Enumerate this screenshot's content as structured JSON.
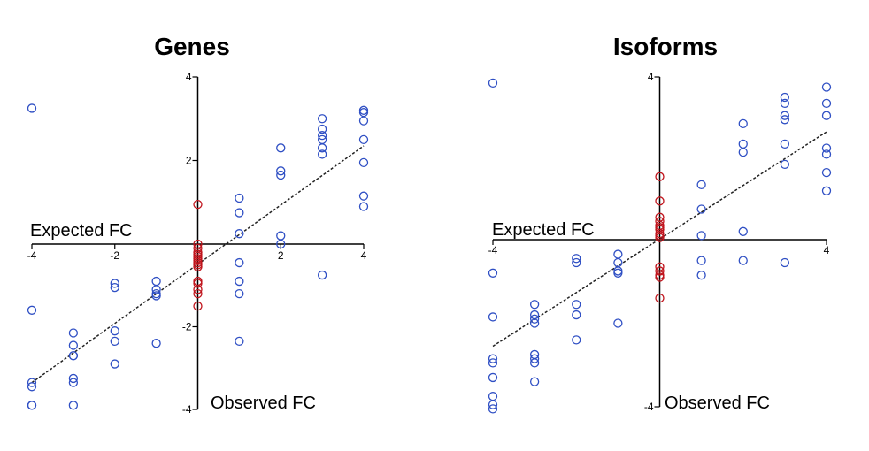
{
  "chart_data": [
    {
      "type": "scatter",
      "title": "Genes",
      "xlabel": "Expected FC",
      "ylabel": "Observed FC",
      "xlim": [
        -4,
        4
      ],
      "ylim": [
        -4,
        4
      ],
      "x_ticks": [
        -4,
        -2,
        2,
        4
      ],
      "y_ticks": [
        4,
        2,
        -2,
        -4
      ],
      "grid": false,
      "colors": {
        "blue": "#2f4fc4",
        "red": "#c0141c",
        "fit": "#222222"
      },
      "fit_line": {
        "x": [
          -4,
          4
        ],
        "y": [
          -3.35,
          2.35
        ]
      },
      "series": [
        {
          "color": "blue",
          "points": [
            [
              -4,
              3.25
            ],
            [
              -4,
              -1.6
            ],
            [
              -4,
              -3.35
            ],
            [
              -4,
              -3.45
            ],
            [
              -4,
              -3.9
            ],
            [
              -4,
              -3.9
            ],
            [
              -3,
              -2.15
            ],
            [
              -3,
              -2.45
            ],
            [
              -3,
              -2.7
            ],
            [
              -3,
              -2.7
            ],
            [
              -3,
              -3.25
            ],
            [
              -3,
              -3.35
            ],
            [
              -3,
              -3.9
            ],
            [
              -2,
              -0.95
            ],
            [
              -2,
              -1.05
            ],
            [
              -2,
              -2.1
            ],
            [
              -2,
              -2.35
            ],
            [
              -2,
              -2.9
            ],
            [
              -1,
              -0.9
            ],
            [
              -1,
              -1.1
            ],
            [
              -1,
              -1.2
            ],
            [
              -1,
              -1.25
            ],
            [
              -1,
              -2.4
            ],
            [
              1,
              1.1
            ],
            [
              1,
              0.75
            ],
            [
              1,
              0.25
            ],
            [
              1,
              -0.45
            ],
            [
              1,
              -0.9
            ],
            [
              1,
              -1.2
            ],
            [
              1,
              -2.35
            ],
            [
              2,
              2.3
            ],
            [
              2,
              1.75
            ],
            [
              2,
              1.65
            ],
            [
              2,
              0.2
            ],
            [
              2,
              0.0
            ],
            [
              3,
              3.0
            ],
            [
              3,
              2.75
            ],
            [
              3,
              2.6
            ],
            [
              3,
              2.5
            ],
            [
              3,
              2.3
            ],
            [
              3,
              2.15
            ],
            [
              3,
              -0.75
            ],
            [
              4,
              3.2
            ],
            [
              4,
              3.15
            ],
            [
              4,
              2.95
            ],
            [
              4,
              2.5
            ],
            [
              4,
              1.95
            ],
            [
              4,
              1.15
            ],
            [
              4,
              0.9
            ]
          ]
        },
        {
          "color": "red",
          "points": [
            [
              0,
              0.95
            ],
            [
              0,
              0.0
            ],
            [
              0,
              -0.1
            ],
            [
              0,
              -0.2
            ],
            [
              0,
              -0.25
            ],
            [
              0,
              -0.3
            ],
            [
              0,
              -0.35
            ],
            [
              0,
              -0.4
            ],
            [
              0,
              -0.45
            ],
            [
              0,
              -0.5
            ],
            [
              0,
              -0.55
            ],
            [
              0,
              -0.9
            ],
            [
              0,
              -0.95
            ],
            [
              0,
              -1.1
            ],
            [
              0,
              -1.2
            ],
            [
              0,
              -1.5
            ]
          ]
        }
      ]
    },
    {
      "type": "scatter",
      "title": "Isoforms",
      "xlabel": "Expected FC",
      "ylabel": "Observed FC",
      "xlim": [
        -4,
        4
      ],
      "ylim": [
        -4,
        4
      ],
      "x_ticks": [
        -4,
        4
      ],
      "y_ticks": [
        4,
        -4
      ],
      "grid": false,
      "colors": {
        "blue": "#2f4fc4",
        "red": "#c0141c",
        "fit": "#222222"
      },
      "fit_line": {
        "x": [
          -4,
          4
        ],
        "y": [
          -2.55,
          2.65
        ]
      },
      "series": [
        {
          "color": "blue",
          "points": [
            [
              -4,
              3.85
            ],
            [
              -4,
              -0.8
            ],
            [
              -4,
              -1.85
            ],
            [
              -4,
              -2.85
            ],
            [
              -4,
              -2.95
            ],
            [
              -4,
              -3.3
            ],
            [
              -4,
              -3.75
            ],
            [
              -4,
              -3.95
            ],
            [
              -4,
              -4.05
            ],
            [
              -3,
              -1.55
            ],
            [
              -3,
              -1.8
            ],
            [
              -3,
              -1.9
            ],
            [
              -3,
              -2.0
            ],
            [
              -3,
              -2.75
            ],
            [
              -3,
              -2.85
            ],
            [
              -3,
              -2.95
            ],
            [
              -3,
              -3.4
            ],
            [
              -2,
              -0.45
            ],
            [
              -2,
              -0.55
            ],
            [
              -2,
              -1.55
            ],
            [
              -2,
              -1.8
            ],
            [
              -2,
              -2.4
            ],
            [
              -1,
              -0.35
            ],
            [
              -1,
              -0.55
            ],
            [
              -1,
              -0.75
            ],
            [
              -1,
              -0.8
            ],
            [
              -1,
              -2.0
            ],
            [
              1,
              1.35
            ],
            [
              1,
              0.75
            ],
            [
              1,
              0.1
            ],
            [
              1,
              -0.5
            ],
            [
              1,
              -0.85
            ],
            [
              2,
              2.85
            ],
            [
              2,
              2.35
            ],
            [
              2,
              2.15
            ],
            [
              2,
              0.2
            ],
            [
              2,
              -0.5
            ],
            [
              3,
              3.5
            ],
            [
              3,
              3.35
            ],
            [
              3,
              3.05
            ],
            [
              3,
              2.95
            ],
            [
              3,
              2.35
            ],
            [
              3,
              1.85
            ],
            [
              3,
              -0.55
            ],
            [
              4,
              3.75
            ],
            [
              4,
              3.35
            ],
            [
              4,
              3.05
            ],
            [
              4,
              2.25
            ],
            [
              4,
              2.1
            ],
            [
              4,
              1.65
            ],
            [
              4,
              1.2
            ]
          ]
        },
        {
          "color": "red",
          "points": [
            [
              0,
              1.55
            ],
            [
              0,
              0.95
            ],
            [
              0,
              0.55
            ],
            [
              0,
              0.45
            ],
            [
              0,
              0.35
            ],
            [
              0,
              0.3
            ],
            [
              0,
              0.25
            ],
            [
              0,
              0.15
            ],
            [
              0,
              0.1
            ],
            [
              0,
              0.05
            ],
            [
              0,
              -0.65
            ],
            [
              0,
              -0.75
            ],
            [
              0,
              -0.85
            ],
            [
              0,
              -0.9
            ],
            [
              0,
              -1.4
            ]
          ]
        }
      ]
    }
  ]
}
